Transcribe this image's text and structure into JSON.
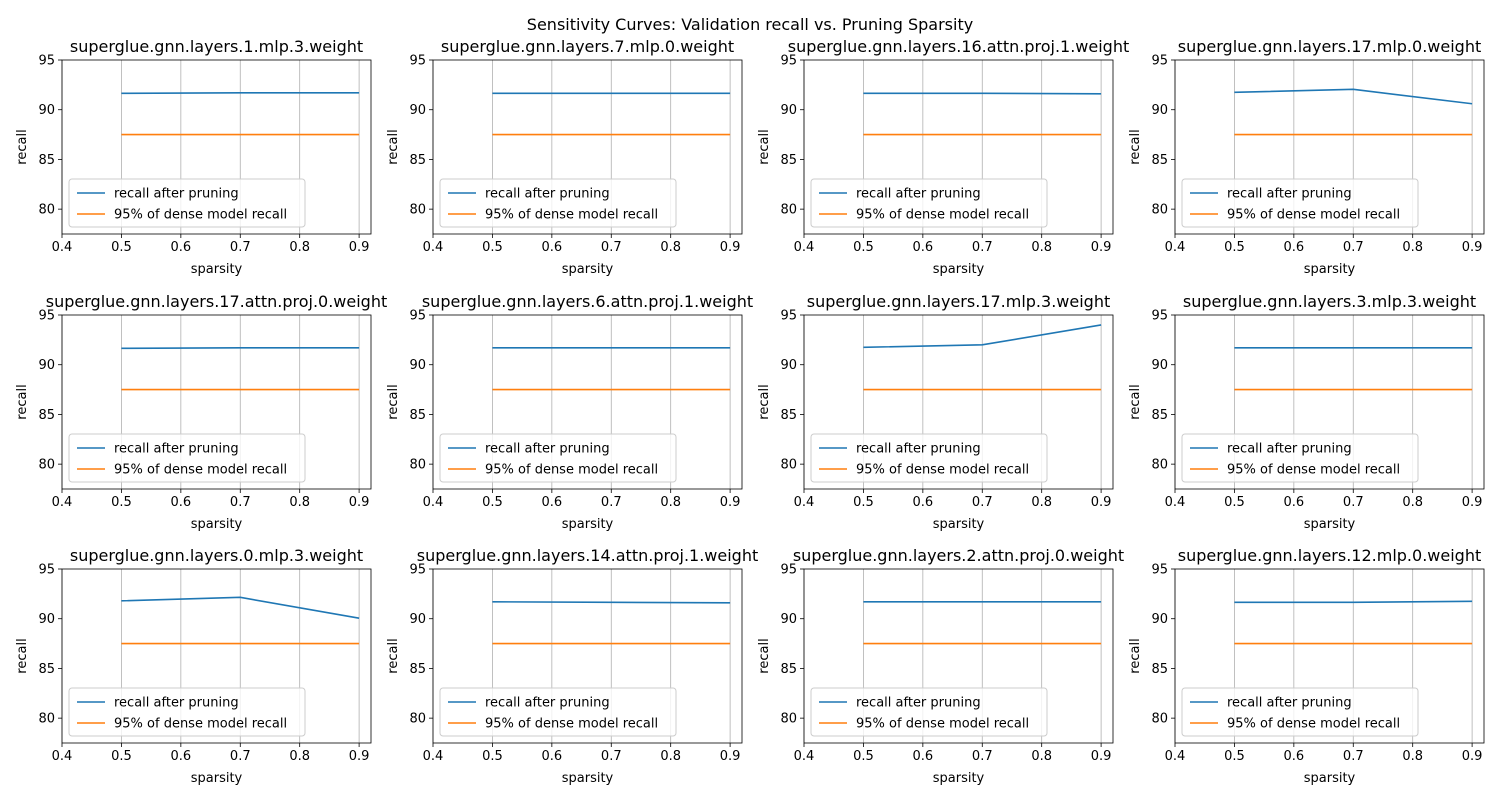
{
  "figure": {
    "suptitle": "Sensitivity Curves: Validation recall vs. Pruning Sparsity"
  },
  "chart_data": [
    {
      "type": "line",
      "title": "superglue.gnn.layers.1.mlp.3.weight",
      "xlabel": "sparsity",
      "ylabel": "recall",
      "xlim": [
        0.4,
        0.92
      ],
      "ylim": [
        77.5,
        95
      ],
      "xticks": [
        0.4,
        0.5,
        0.6,
        0.7,
        0.8,
        0.9
      ],
      "yticks": [
        80,
        85,
        90,
        95
      ],
      "grid": "x",
      "legend_loc": "lower left",
      "series": [
        {
          "name": "recall after pruning",
          "color": "#1f77b4",
          "x": [
            0.5,
            0.7,
            0.9
          ],
          "y": [
            91.65,
            91.7,
            91.7
          ]
        },
        {
          "name": "95% of dense model recall",
          "color": "#ff7f0e",
          "x": [
            0.5,
            0.7,
            0.9
          ],
          "y": [
            87.5,
            87.5,
            87.5
          ]
        }
      ]
    },
    {
      "type": "line",
      "title": "superglue.gnn.layers.7.mlp.0.weight",
      "xlabel": "sparsity",
      "ylabel": "recall",
      "xlim": [
        0.4,
        0.92
      ],
      "ylim": [
        77.5,
        95
      ],
      "xticks": [
        0.4,
        0.5,
        0.6,
        0.7,
        0.8,
        0.9
      ],
      "yticks": [
        80,
        85,
        90,
        95
      ],
      "grid": "x",
      "legend_loc": "lower left",
      "series": [
        {
          "name": "recall after pruning",
          "color": "#1f77b4",
          "x": [
            0.5,
            0.7,
            0.9
          ],
          "y": [
            91.65,
            91.65,
            91.65
          ]
        },
        {
          "name": "95% of dense model recall",
          "color": "#ff7f0e",
          "x": [
            0.5,
            0.7,
            0.9
          ],
          "y": [
            87.5,
            87.5,
            87.5
          ]
        }
      ]
    },
    {
      "type": "line",
      "title": "superglue.gnn.layers.16.attn.proj.1.weight",
      "xlabel": "sparsity",
      "ylabel": "recall",
      "xlim": [
        0.4,
        0.92
      ],
      "ylim": [
        77.5,
        95
      ],
      "xticks": [
        0.4,
        0.5,
        0.6,
        0.7,
        0.8,
        0.9
      ],
      "yticks": [
        80,
        85,
        90,
        95
      ],
      "grid": "x",
      "legend_loc": "lower left",
      "series": [
        {
          "name": "recall after pruning",
          "color": "#1f77b4",
          "x": [
            0.5,
            0.7,
            0.9
          ],
          "y": [
            91.65,
            91.65,
            91.6
          ]
        },
        {
          "name": "95% of dense model recall",
          "color": "#ff7f0e",
          "x": [
            0.5,
            0.7,
            0.9
          ],
          "y": [
            87.5,
            87.5,
            87.5
          ]
        }
      ]
    },
    {
      "type": "line",
      "title": "superglue.gnn.layers.17.mlp.0.weight",
      "xlabel": "sparsity",
      "ylabel": "recall",
      "xlim": [
        0.4,
        0.92
      ],
      "ylim": [
        77.5,
        95
      ],
      "xticks": [
        0.4,
        0.5,
        0.6,
        0.7,
        0.8,
        0.9
      ],
      "yticks": [
        80,
        85,
        90,
        95
      ],
      "grid": "x",
      "legend_loc": "lower left",
      "series": [
        {
          "name": "recall after pruning",
          "color": "#1f77b4",
          "x": [
            0.5,
            0.7,
            0.9
          ],
          "y": [
            91.75,
            92.05,
            90.6
          ]
        },
        {
          "name": "95% of dense model recall",
          "color": "#ff7f0e",
          "x": [
            0.5,
            0.7,
            0.9
          ],
          "y": [
            87.5,
            87.5,
            87.5
          ]
        }
      ]
    },
    {
      "type": "line",
      "title": "superglue.gnn.layers.17.attn.proj.0.weight",
      "xlabel": "sparsity",
      "ylabel": "recall",
      "xlim": [
        0.4,
        0.92
      ],
      "ylim": [
        77.5,
        95
      ],
      "xticks": [
        0.4,
        0.5,
        0.6,
        0.7,
        0.8,
        0.9
      ],
      "yticks": [
        80,
        85,
        90,
        95
      ],
      "grid": "x",
      "legend_loc": "lower left",
      "series": [
        {
          "name": "recall after pruning",
          "color": "#1f77b4",
          "x": [
            0.5,
            0.7,
            0.9
          ],
          "y": [
            91.65,
            91.7,
            91.7
          ]
        },
        {
          "name": "95% of dense model recall",
          "color": "#ff7f0e",
          "x": [
            0.5,
            0.7,
            0.9
          ],
          "y": [
            87.5,
            87.5,
            87.5
          ]
        }
      ]
    },
    {
      "type": "line",
      "title": "superglue.gnn.layers.6.attn.proj.1.weight",
      "xlabel": "sparsity",
      "ylabel": "recall",
      "xlim": [
        0.4,
        0.92
      ],
      "ylim": [
        77.5,
        95
      ],
      "xticks": [
        0.4,
        0.5,
        0.6,
        0.7,
        0.8,
        0.9
      ],
      "yticks": [
        80,
        85,
        90,
        95
      ],
      "grid": "x",
      "legend_loc": "lower left",
      "series": [
        {
          "name": "recall after pruning",
          "color": "#1f77b4",
          "x": [
            0.5,
            0.7,
            0.9
          ],
          "y": [
            91.7,
            91.7,
            91.7
          ]
        },
        {
          "name": "95% of dense model recall",
          "color": "#ff7f0e",
          "x": [
            0.5,
            0.7,
            0.9
          ],
          "y": [
            87.5,
            87.5,
            87.5
          ]
        }
      ]
    },
    {
      "type": "line",
      "title": "superglue.gnn.layers.17.mlp.3.weight",
      "xlabel": "sparsity",
      "ylabel": "recall",
      "xlim": [
        0.4,
        0.92
      ],
      "ylim": [
        77.5,
        95
      ],
      "xticks": [
        0.4,
        0.5,
        0.6,
        0.7,
        0.8,
        0.9
      ],
      "yticks": [
        80,
        85,
        90,
        95
      ],
      "grid": "x",
      "legend_loc": "lower left",
      "series": [
        {
          "name": "recall after pruning",
          "color": "#1f77b4",
          "x": [
            0.5,
            0.7,
            0.9
          ],
          "y": [
            91.75,
            92.0,
            94.0
          ]
        },
        {
          "name": "95% of dense model recall",
          "color": "#ff7f0e",
          "x": [
            0.5,
            0.7,
            0.9
          ],
          "y": [
            87.5,
            87.5,
            87.5
          ]
        }
      ]
    },
    {
      "type": "line",
      "title": "superglue.gnn.layers.3.mlp.3.weight",
      "xlabel": "sparsity",
      "ylabel": "recall",
      "xlim": [
        0.4,
        0.92
      ],
      "ylim": [
        77.5,
        95
      ],
      "xticks": [
        0.4,
        0.5,
        0.6,
        0.7,
        0.8,
        0.9
      ],
      "yticks": [
        80,
        85,
        90,
        95
      ],
      "grid": "x",
      "legend_loc": "lower left",
      "series": [
        {
          "name": "recall after pruning",
          "color": "#1f77b4",
          "x": [
            0.5,
            0.7,
            0.9
          ],
          "y": [
            91.7,
            91.7,
            91.7
          ]
        },
        {
          "name": "95% of dense model recall",
          "color": "#ff7f0e",
          "x": [
            0.5,
            0.7,
            0.9
          ],
          "y": [
            87.5,
            87.5,
            87.5
          ]
        }
      ]
    },
    {
      "type": "line",
      "title": "superglue.gnn.layers.0.mlp.3.weight",
      "xlabel": "sparsity",
      "ylabel": "recall",
      "xlim": [
        0.4,
        0.92
      ],
      "ylim": [
        77.5,
        95
      ],
      "xticks": [
        0.4,
        0.5,
        0.6,
        0.7,
        0.8,
        0.9
      ],
      "yticks": [
        80,
        85,
        90,
        95
      ],
      "grid": "x",
      "legend_loc": "lower left",
      "series": [
        {
          "name": "recall after pruning",
          "color": "#1f77b4",
          "x": [
            0.5,
            0.7,
            0.9
          ],
          "y": [
            91.8,
            92.15,
            90.05
          ]
        },
        {
          "name": "95% of dense model recall",
          "color": "#ff7f0e",
          "x": [
            0.5,
            0.7,
            0.9
          ],
          "y": [
            87.5,
            87.5,
            87.5
          ]
        }
      ]
    },
    {
      "type": "line",
      "title": "superglue.gnn.layers.14.attn.proj.1.weight",
      "xlabel": "sparsity",
      "ylabel": "recall",
      "xlim": [
        0.4,
        0.92
      ],
      "ylim": [
        77.5,
        95
      ],
      "xticks": [
        0.4,
        0.5,
        0.6,
        0.7,
        0.8,
        0.9
      ],
      "yticks": [
        80,
        85,
        90,
        95
      ],
      "grid": "x",
      "legend_loc": "lower left",
      "series": [
        {
          "name": "recall after pruning",
          "color": "#1f77b4",
          "x": [
            0.5,
            0.7,
            0.9
          ],
          "y": [
            91.7,
            91.65,
            91.6
          ]
        },
        {
          "name": "95% of dense model recall",
          "color": "#ff7f0e",
          "x": [
            0.5,
            0.7,
            0.9
          ],
          "y": [
            87.5,
            87.5,
            87.5
          ]
        }
      ]
    },
    {
      "type": "line",
      "title": "superglue.gnn.layers.2.attn.proj.0.weight",
      "xlabel": "sparsity",
      "ylabel": "recall",
      "xlim": [
        0.4,
        0.92
      ],
      "ylim": [
        77.5,
        95
      ],
      "xticks": [
        0.4,
        0.5,
        0.6,
        0.7,
        0.8,
        0.9
      ],
      "yticks": [
        80,
        85,
        90,
        95
      ],
      "grid": "x",
      "legend_loc": "lower left",
      "series": [
        {
          "name": "recall after pruning",
          "color": "#1f77b4",
          "x": [
            0.5,
            0.7,
            0.9
          ],
          "y": [
            91.7,
            91.7,
            91.7
          ]
        },
        {
          "name": "95% of dense model recall",
          "color": "#ff7f0e",
          "x": [
            0.5,
            0.7,
            0.9
          ],
          "y": [
            87.5,
            87.5,
            87.5
          ]
        }
      ]
    },
    {
      "type": "line",
      "title": "superglue.gnn.layers.12.mlp.0.weight",
      "xlabel": "sparsity",
      "ylabel": "recall",
      "xlim": [
        0.4,
        0.92
      ],
      "ylim": [
        77.5,
        95
      ],
      "xticks": [
        0.4,
        0.5,
        0.6,
        0.7,
        0.8,
        0.9
      ],
      "yticks": [
        80,
        85,
        90,
        95
      ],
      "grid": "x",
      "legend_loc": "lower left",
      "series": [
        {
          "name": "recall after pruning",
          "color": "#1f77b4",
          "x": [
            0.5,
            0.7,
            0.9
          ],
          "y": [
            91.65,
            91.65,
            91.75
          ]
        },
        {
          "name": "95% of dense model recall",
          "color": "#ff7f0e",
          "x": [
            0.5,
            0.7,
            0.9
          ],
          "y": [
            87.5,
            87.5,
            87.5
          ]
        }
      ]
    }
  ]
}
